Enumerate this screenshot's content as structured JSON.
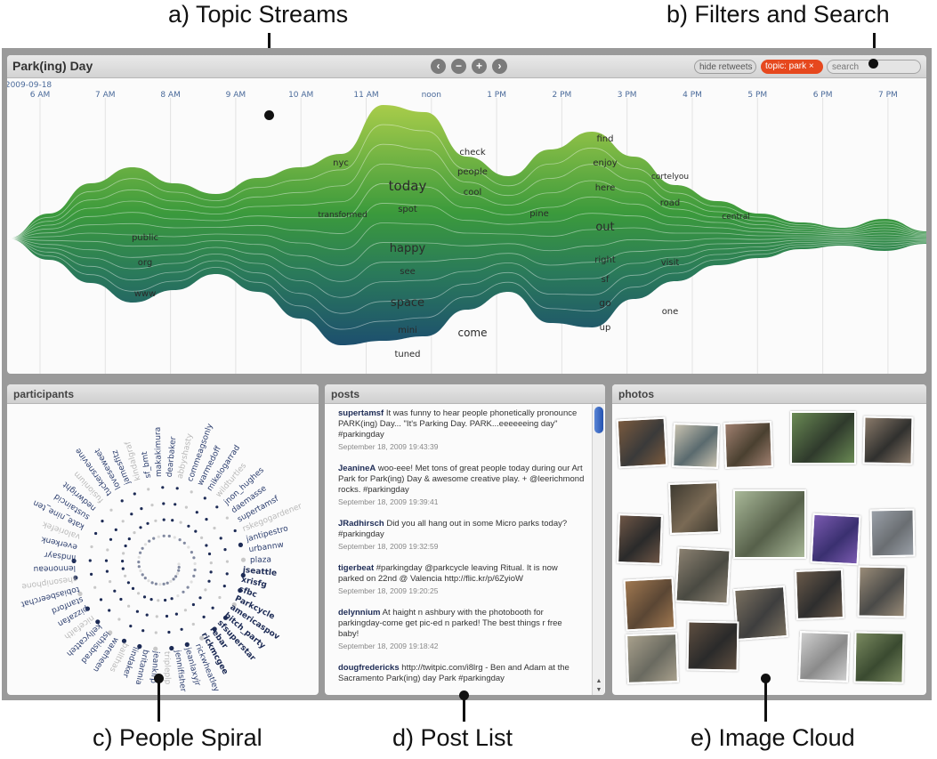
{
  "captions": {
    "a": "a) Topic Streams",
    "b": "b) Filters and Search",
    "c": "c) People Spiral",
    "d": "d) Post List",
    "e": "e) Image Cloud"
  },
  "streams": {
    "title": "Park(ing) Day",
    "date": "2009-09-18",
    "nav": {
      "prev_icon": "chevron-left-icon",
      "zoom_out_icon": "minus-icon",
      "zoom_in_icon": "plus-icon",
      "next_icon": "chevron-right-icon",
      "prev": "‹",
      "zoom_out": "−",
      "zoom_in": "+",
      "next": "›"
    },
    "hours": [
      "6 AM",
      "7 AM",
      "8 AM",
      "9 AM",
      "10 AM",
      "11 AM",
      "noon",
      "1 PM",
      "2 PM",
      "3 PM",
      "4 PM",
      "5 PM",
      "6 PM",
      "7 PM"
    ],
    "words": [
      {
        "text": "nyc",
        "size": 10
      },
      {
        "text": "check",
        "size": 10
      },
      {
        "text": "people",
        "size": 10
      },
      {
        "text": "find",
        "size": 10
      },
      {
        "text": "enjoy",
        "size": 10
      },
      {
        "text": "cortelyou",
        "size": 9
      },
      {
        "text": "today",
        "size": 15
      },
      {
        "text": "cool",
        "size": 10
      },
      {
        "text": "here",
        "size": 10
      },
      {
        "text": "road",
        "size": 10
      },
      {
        "text": "transformed",
        "size": 9
      },
      {
        "text": "spot",
        "size": 10
      },
      {
        "text": "pine",
        "size": 10
      },
      {
        "text": "central",
        "size": 9
      },
      {
        "text": "out",
        "size": 13
      },
      {
        "text": "public",
        "size": 10
      },
      {
        "text": "happy",
        "size": 13
      },
      {
        "text": "org",
        "size": 10
      },
      {
        "text": "right",
        "size": 10
      },
      {
        "text": "visit",
        "size": 10
      },
      {
        "text": "see",
        "size": 10
      },
      {
        "text": "sf",
        "size": 10
      },
      {
        "text": "www",
        "size": 10
      },
      {
        "text": "space",
        "size": 13
      },
      {
        "text": "go",
        "size": 11
      },
      {
        "text": "one",
        "size": 10
      },
      {
        "text": "mini",
        "size": 10
      },
      {
        "text": "up",
        "size": 10
      },
      {
        "text": "come",
        "size": 12
      },
      {
        "text": "tuned",
        "size": 10
      }
    ]
  },
  "filters": {
    "hide_retweets": "hide retweets",
    "topic_tag": "topic: park",
    "topic_close": "×",
    "search_placeholder": "search"
  },
  "participants": {
    "header": "participants",
    "highlighted": [
      "jseattle",
      "xrisfg",
      "sfbc",
      "Parkcycle",
      "americaspov",
      "bitch_party",
      "sfsuperstar",
      "rebar",
      "rickmcgee"
    ],
    "others": [
      "rickwheatley",
      "jeanlaxyjr",
      "jennifisher",
      "tripleplp",
      "jeankirp",
      "britannia",
      "lindaker",
      "ballthas",
      "wareheen",
      "isthisbrad",
      "kellycatteh",
      "nicefaith",
      "pizzafan",
      "stanford",
      "tobiasbeerchat",
      "shesoniphone",
      "lennoneau",
      "lindsayr",
      "everkenk",
      "valoriefek",
      "kate_nine_ten",
      "sustaincid",
      "nedwright",
      "fusionium",
      "tuckersnevine",
      "loveseweet",
      "jamesfitz",
      "kindalgraf",
      "sf_bmt",
      "makakimura",
      "dearbaker",
      "abbyshasty",
      "commeagsonly",
      "warmedoff",
      "mikelogarrad",
      "wildturtles",
      "jnon_hughes",
      "daemasse",
      "supertamsf",
      "rskegogardener",
      "jantipestro",
      "urbannw",
      "plaza"
    ]
  },
  "posts": {
    "header": "posts",
    "items": [
      {
        "user": "supertamsf",
        "text": "It was funny to hear people phonetically pronounce PARK(ing) Day... \"It's Parking Day. PARK...eeeeeeing day\" #parkingday",
        "time": "September 18, 2009 19:43:39"
      },
      {
        "user": "JeanineA",
        "text": "woo-eee! Met tons of great people today during our Art Park for Park(ing) Day & awesome creative play. + @leerichmond rocks. #parkingday",
        "time": "September 18, 2009 19:39:41"
      },
      {
        "user": "JRadhirsch",
        "text": "Did you all hang out in some Micro parks today? #parkingday",
        "time": "September 18, 2009 19:32:59"
      },
      {
        "user": "tigerbeat",
        "text": "#parkingday @parkcycle leaving Ritual. It is now parked on 22nd @ Valencia http://flic.kr/p/6ZyioW",
        "time": "September 18, 2009 19:20:25"
      },
      {
        "user": "delynnium",
        "text": "At haight n ashbury with the photobooth for parkingday-come get pic-ed n parked! The best things r free baby!",
        "time": "September 18, 2009 19:18:42"
      },
      {
        "user": "dougfredericks",
        "text": "http://twitpic.com/i8lrg - Ben and Adam at the Sacramento Park(ing) day Park #parkingday",
        "time": ""
      }
    ]
  },
  "photos": {
    "header": "photos"
  },
  "colors": {
    "accent": "#e6481e",
    "stream_top": "#a8cc4a",
    "stream_mid": "#3b9a3c",
    "stream_bottom": "#1d4f6e",
    "user": "#1d2b55"
  }
}
